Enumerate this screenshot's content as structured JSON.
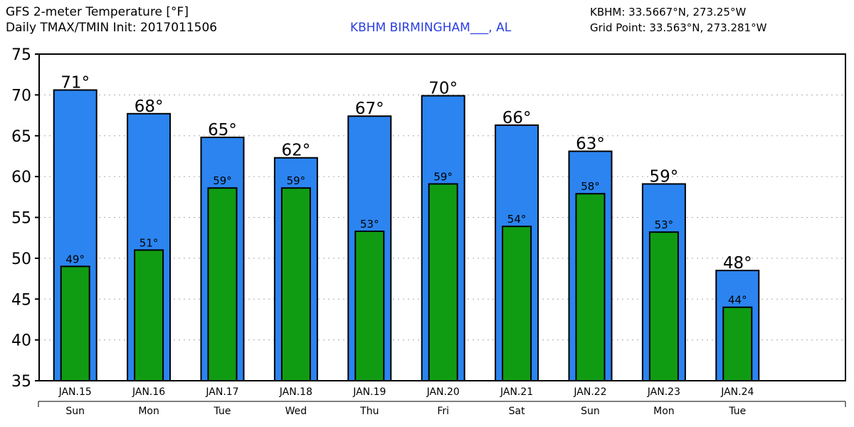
{
  "header": {
    "title_line1": "GFS 2-meter Temperature [°F]",
    "title_line2": "Daily TMAX/TMIN Init: 2017011506",
    "station": "KBHM BIRMINGHAM___, AL",
    "station_coords": "KBHM: 33.5667°N, 273.25°W",
    "grid_point": "Grid Point: 33.563°N, 273.281°W"
  },
  "colors": {
    "tmax_bar": "#2b84f0",
    "tmin_bar": "#109c12",
    "station_text": "#2a3fe0",
    "grid": "#aaaaaa"
  },
  "chart_data": {
    "type": "bar",
    "title": "GFS 2-meter Temperature [°F]",
    "categories": [
      "JAN.15",
      "JAN.16",
      "JAN.17",
      "JAN.18",
      "JAN.19",
      "JAN.20",
      "JAN.21",
      "JAN.22",
      "JAN.23",
      "JAN.24"
    ],
    "days": [
      "Sun",
      "Mon",
      "Tue",
      "Wed",
      "Thu",
      "Fri",
      "Sat",
      "Sun",
      "Mon",
      "Tue"
    ],
    "series": [
      {
        "name": "TMAX",
        "values": [
          70.6,
          67.7,
          64.8,
          62.3,
          67.4,
          69.9,
          66.3,
          63.1,
          59.1,
          48.5
        ],
        "labels": [
          "71°",
          "68°",
          "65°",
          "62°",
          "67°",
          "70°",
          "66°",
          "63°",
          "59°",
          "48°"
        ]
      },
      {
        "name": "TMIN",
        "values": [
          49.0,
          51.0,
          58.6,
          58.6,
          53.3,
          59.1,
          53.9,
          57.9,
          53.2,
          44.0
        ],
        "labels": [
          "49°",
          "51°",
          "59°",
          "59°",
          "53°",
          "59°",
          "54°",
          "58°",
          "53°",
          "44°"
        ]
      }
    ],
    "yticks": [
      35,
      40,
      45,
      50,
      55,
      60,
      65,
      70,
      75
    ],
    "ylim": [
      35,
      75
    ],
    "grid": true
  }
}
